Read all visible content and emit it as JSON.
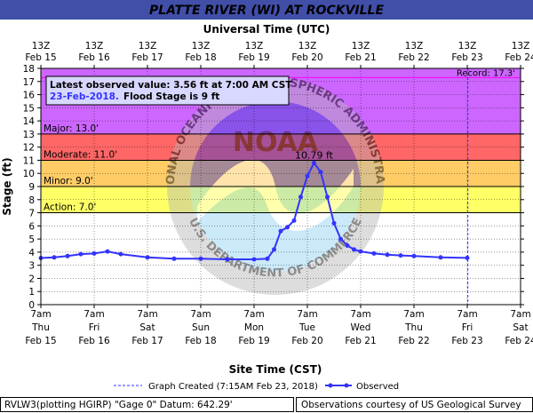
{
  "title": "PLATTE RIVER (WI) AT ROCKVILLE",
  "top_axis_title": "Universal Time (UTC)",
  "bottom_axis_title": "Site Time (CST)",
  "y_axis_title": "Stage (ft)",
  "latest": {
    "line1": "Latest observed value: 3.56 ft at 7:00 AM CST",
    "line2_date": "23-Feb-2018.",
    "line2_flood": "Flood Stage is 9 ft"
  },
  "record_label": "Record: 17.3'",
  "peak_label": "10.79 ft",
  "legend": {
    "created": "Graph Created (7:15AM Feb 23, 2018)",
    "observed": "Observed"
  },
  "footer": {
    "left": "RVLW3(plotting HGIRP) \"Gage 0\" Datum: 642.29'",
    "right": "Observations courtesy of US Geological Survey"
  },
  "watermark": {
    "text_top": "NATIONAL OCEANIC AND ATMOSPHERIC ADMINISTRATION",
    "text_bottom": "U.S. DEPARTMENT OF COMMERCE",
    "logo": "NOAA"
  },
  "colors": {
    "title_bg": "#414fa9",
    "major": "#cc66ff",
    "moderate": "#ff6666",
    "minor": "#ffcc66",
    "action": "#ffff66",
    "observed": "#3333ff",
    "record_line": "#ff00ff"
  },
  "chart_data": {
    "type": "line",
    "ylim": [
      0,
      18
    ],
    "yticks": [
      0,
      1,
      2,
      3,
      4,
      5,
      6,
      7,
      8,
      9,
      10,
      11,
      12,
      13,
      14,
      15,
      16,
      17,
      18
    ],
    "x_range": [
      "2018-02-15 07:00",
      "2018-02-24 07:00"
    ],
    "top_ticks": [
      {
        "l1": "13Z",
        "l2": "Feb 15"
      },
      {
        "l1": "13Z",
        "l2": "Feb 16"
      },
      {
        "l1": "13Z",
        "l2": "Feb 17"
      },
      {
        "l1": "13Z",
        "l2": "Feb 18"
      },
      {
        "l1": "13Z",
        "l2": "Feb 19"
      },
      {
        "l1": "13Z",
        "l2": "Feb 20"
      },
      {
        "l1": "13Z",
        "l2": "Feb 21"
      },
      {
        "l1": "13Z",
        "l2": "Feb 22"
      },
      {
        "l1": "13Z",
        "l2": "Feb 23"
      },
      {
        "l1": "13Z",
        "l2": "Feb 24"
      }
    ],
    "bottom_ticks": [
      {
        "l1": "7am",
        "l2": "Thu",
        "l3": "Feb 15"
      },
      {
        "l1": "7am",
        "l2": "Fri",
        "l3": "Feb 16"
      },
      {
        "l1": "7am",
        "l2": "Sat",
        "l3": "Feb 17"
      },
      {
        "l1": "7am",
        "l2": "Sun",
        "l3": "Feb 18"
      },
      {
        "l1": "7am",
        "l2": "Mon",
        "l3": "Feb 19"
      },
      {
        "l1": "7am",
        "l2": "Tue",
        "l3": "Feb 20"
      },
      {
        "l1": "7am",
        "l2": "Wed",
        "l3": "Feb 21"
      },
      {
        "l1": "7am",
        "l2": "Thu",
        "l3": "Feb 22"
      },
      {
        "l1": "7am",
        "l2": "Fri",
        "l3": "Feb 23"
      },
      {
        "l1": "7am",
        "l2": "Sat",
        "l3": "Feb 24"
      }
    ],
    "stages": [
      {
        "name": "Major",
        "label": "Major: 13.0'",
        "from": 13,
        "to": 18
      },
      {
        "name": "Moderate",
        "label": "Moderate: 11.0'",
        "from": 11,
        "to": 13
      },
      {
        "name": "Minor",
        "label": "Minor: 9.0'",
        "from": 9,
        "to": 11
      },
      {
        "name": "Action",
        "label": "Action: 7.0'",
        "from": 7,
        "to": 9
      }
    ],
    "record": 17.3,
    "graph_created": "2018-02-23 07:15",
    "series": [
      {
        "name": "Observed",
        "x": [
          "2018-02-15 07:00",
          "2018-02-15 13:00",
          "2018-02-15 19:00",
          "2018-02-16 01:00",
          "2018-02-16 07:00",
          "2018-02-16 13:00",
          "2018-02-16 19:00",
          "2018-02-17 07:00",
          "2018-02-17 19:00",
          "2018-02-18 07:00",
          "2018-02-18 19:00",
          "2018-02-19 07:00",
          "2018-02-19 13:00",
          "2018-02-19 16:00",
          "2018-02-19 19:00",
          "2018-02-19 22:00",
          "2018-02-20 01:00",
          "2018-02-20 04:00",
          "2018-02-20 07:00",
          "2018-02-20 10:00",
          "2018-02-20 13:00",
          "2018-02-20 16:00",
          "2018-02-20 19:00",
          "2018-02-20 22:00",
          "2018-02-21 01:00",
          "2018-02-21 04:00",
          "2018-02-21 07:00",
          "2018-02-21 13:00",
          "2018-02-21 19:00",
          "2018-02-22 01:00",
          "2018-02-22 07:00",
          "2018-02-22 19:00",
          "2018-02-23 07:00"
        ],
        "y": [
          3.55,
          3.6,
          3.7,
          3.85,
          3.9,
          4.05,
          3.85,
          3.6,
          3.5,
          3.5,
          3.45,
          3.45,
          3.5,
          4.2,
          5.6,
          5.9,
          6.4,
          8.2,
          9.8,
          10.79,
          10.1,
          8.2,
          6.2,
          5.0,
          4.5,
          4.2,
          4.05,
          3.9,
          3.8,
          3.75,
          3.7,
          3.6,
          3.56
        ]
      }
    ]
  }
}
